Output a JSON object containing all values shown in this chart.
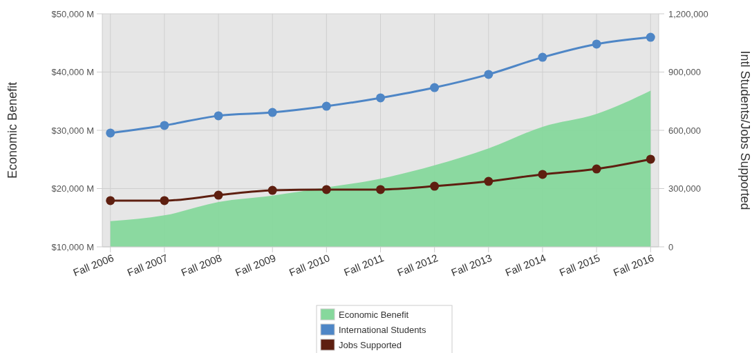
{
  "chart_data": {
    "type": "line",
    "categories": [
      "Fall 2006",
      "Fall 2007",
      "Fall 2008",
      "Fall 2009",
      "Fall 2010",
      "Fall 2011",
      "Fall 2012",
      "Fall 2013",
      "Fall 2014",
      "Fall 2015",
      "Fall 2016"
    ],
    "series": [
      {
        "name": "Economic Benefit",
        "type": "area",
        "color": "#86d89c",
        "values": [
          14400,
          15400,
          17700,
          18800,
          20200,
          21700,
          24000,
          26900,
          30600,
          32800,
          36800
        ]
      },
      {
        "name": "International Students",
        "axis": "y2",
        "marker": "circle",
        "color": "#4e86c6",
        "values": [
          586000,
          625000,
          675000,
          692000,
          724000,
          767000,
          820000,
          888000,
          976000,
          1044000,
          1079000
        ]
      },
      {
        "name": "Jobs Supported",
        "axis": "y2",
        "marker": "circle",
        "color": "#5e1f10",
        "values": [
          238000,
          238000,
          266000,
          291000,
          295000,
          295000,
          312000,
          337000,
          373000,
          401000,
          451000
        ]
      }
    ],
    "ylabel": "Economic Benefit",
    "y2label": "Intl Students/Jobs Supported",
    "ylim": [
      10000,
      50000
    ],
    "yticks": [
      {
        "value": 10000,
        "label": "$10,000 M"
      },
      {
        "value": 20000,
        "label": "$20,000 M"
      },
      {
        "value": 30000,
        "label": "$30,000 M"
      },
      {
        "value": 40000,
        "label": "$40,000 M"
      },
      {
        "value": 50000,
        "label": "$50,000 M"
      }
    ],
    "y2lim": [
      0,
      1200000
    ],
    "y2ticks": [
      0,
      {
        "value": 300000,
        "label": "300,000"
      },
      {
        "value": 600000,
        "label": "600,000"
      },
      {
        "value": 900000,
        "label": "900,000"
      },
      {
        "value": 1200000,
        "label": "1,200,000"
      }
    ],
    "grid": true,
    "legend": "bottom"
  }
}
